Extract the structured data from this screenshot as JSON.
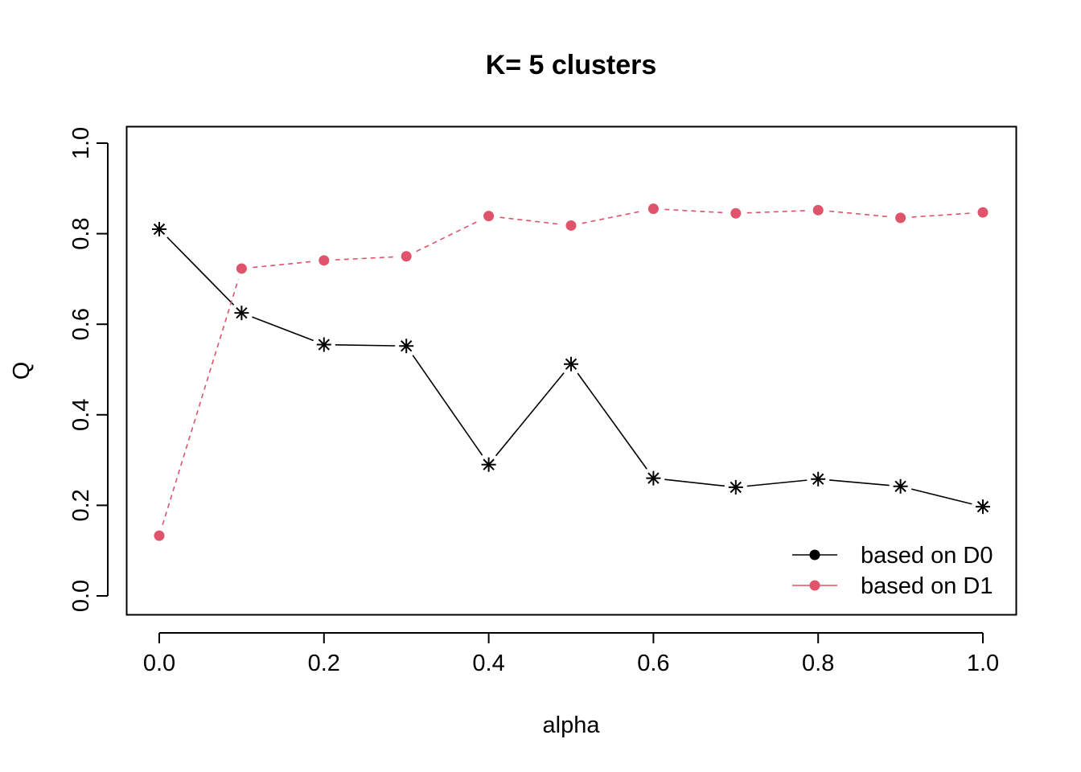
{
  "chart_data": {
    "type": "line",
    "title": "K= 5 clusters",
    "xlabel": "alpha",
    "ylabel": "Q",
    "xlim": [
      0.0,
      1.0
    ],
    "ylim": [
      0.0,
      1.0
    ],
    "xticks": [
      0.0,
      0.2,
      0.4,
      0.6,
      0.8,
      1.0
    ],
    "xtick_labels": [
      "0.0",
      "0.2",
      "0.4",
      "0.6",
      "0.8",
      "1.0"
    ],
    "yticks": [
      0.0,
      0.2,
      0.4,
      0.6,
      0.8,
      1.0
    ],
    "ytick_labels": [
      "0.0",
      "0.2",
      "0.4",
      "0.6",
      "0.8",
      "1.0"
    ],
    "grid": false,
    "legend_position": "bottom-right",
    "x": [
      0.0,
      0.1,
      0.2,
      0.3,
      0.4,
      0.5,
      0.6,
      0.7,
      0.8,
      0.9,
      1.0
    ],
    "series": [
      {
        "name": "based on D0",
        "color": "#000000",
        "line_style": "solid",
        "marker": "asterisk",
        "legend_marker": "dot",
        "values": [
          0.81,
          0.625,
          0.555,
          0.552,
          0.29,
          0.512,
          0.26,
          0.24,
          0.258,
          0.242,
          0.197
        ]
      },
      {
        "name": "based on D1",
        "color": "#DF536B",
        "line_style": "dashed",
        "marker": "dot",
        "legend_marker": "dot",
        "values": [
          0.133,
          0.723,
          0.741,
          0.75,
          0.839,
          0.818,
          0.855,
          0.845,
          0.852,
          0.835,
          0.847
        ]
      }
    ]
  }
}
